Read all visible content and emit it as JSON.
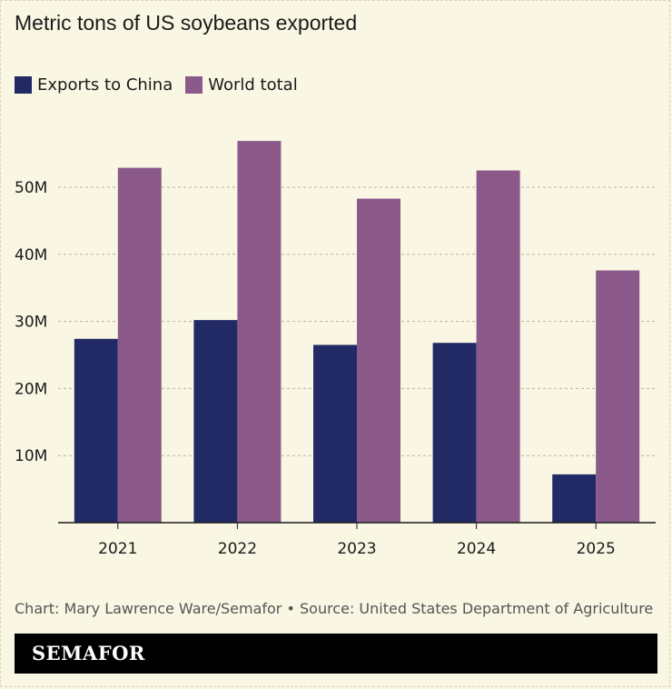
{
  "header": {
    "title": "Metric tons of US soybeans exported"
  },
  "chart_data": {
    "type": "bar",
    "title": "Metric tons of US soybeans exported",
    "xlabel": "",
    "ylabel": "",
    "categories": [
      "2021",
      "2022",
      "2023",
      "2024",
      "2025"
    ],
    "series": [
      {
        "name": "Exports to China",
        "values": [
          27.4,
          30.2,
          26.5,
          26.8,
          7.2
        ],
        "color": "#222a66"
      },
      {
        "name": "World total",
        "values": [
          52.9,
          56.9,
          48.3,
          52.5,
          37.6
        ],
        "color": "#8b5a8a"
      }
    ],
    "ylim": [
      0,
      60
    ],
    "yticks": [
      10,
      20,
      30,
      40,
      50
    ],
    "ytick_labels": [
      "10M",
      "20M",
      "30M",
      "40M",
      "50M"
    ],
    "grid": true,
    "legend_position": "top-left"
  },
  "footer": {
    "credit": "Chart: Mary Lawrence Ware/Semafor • Source: United States Department of Agriculture",
    "brand": "SEMAFOR"
  },
  "colors": {
    "background": "#f9f6e3",
    "china": "#222a66",
    "world": "#8b5a8a",
    "grid": "#b8b4a0"
  }
}
